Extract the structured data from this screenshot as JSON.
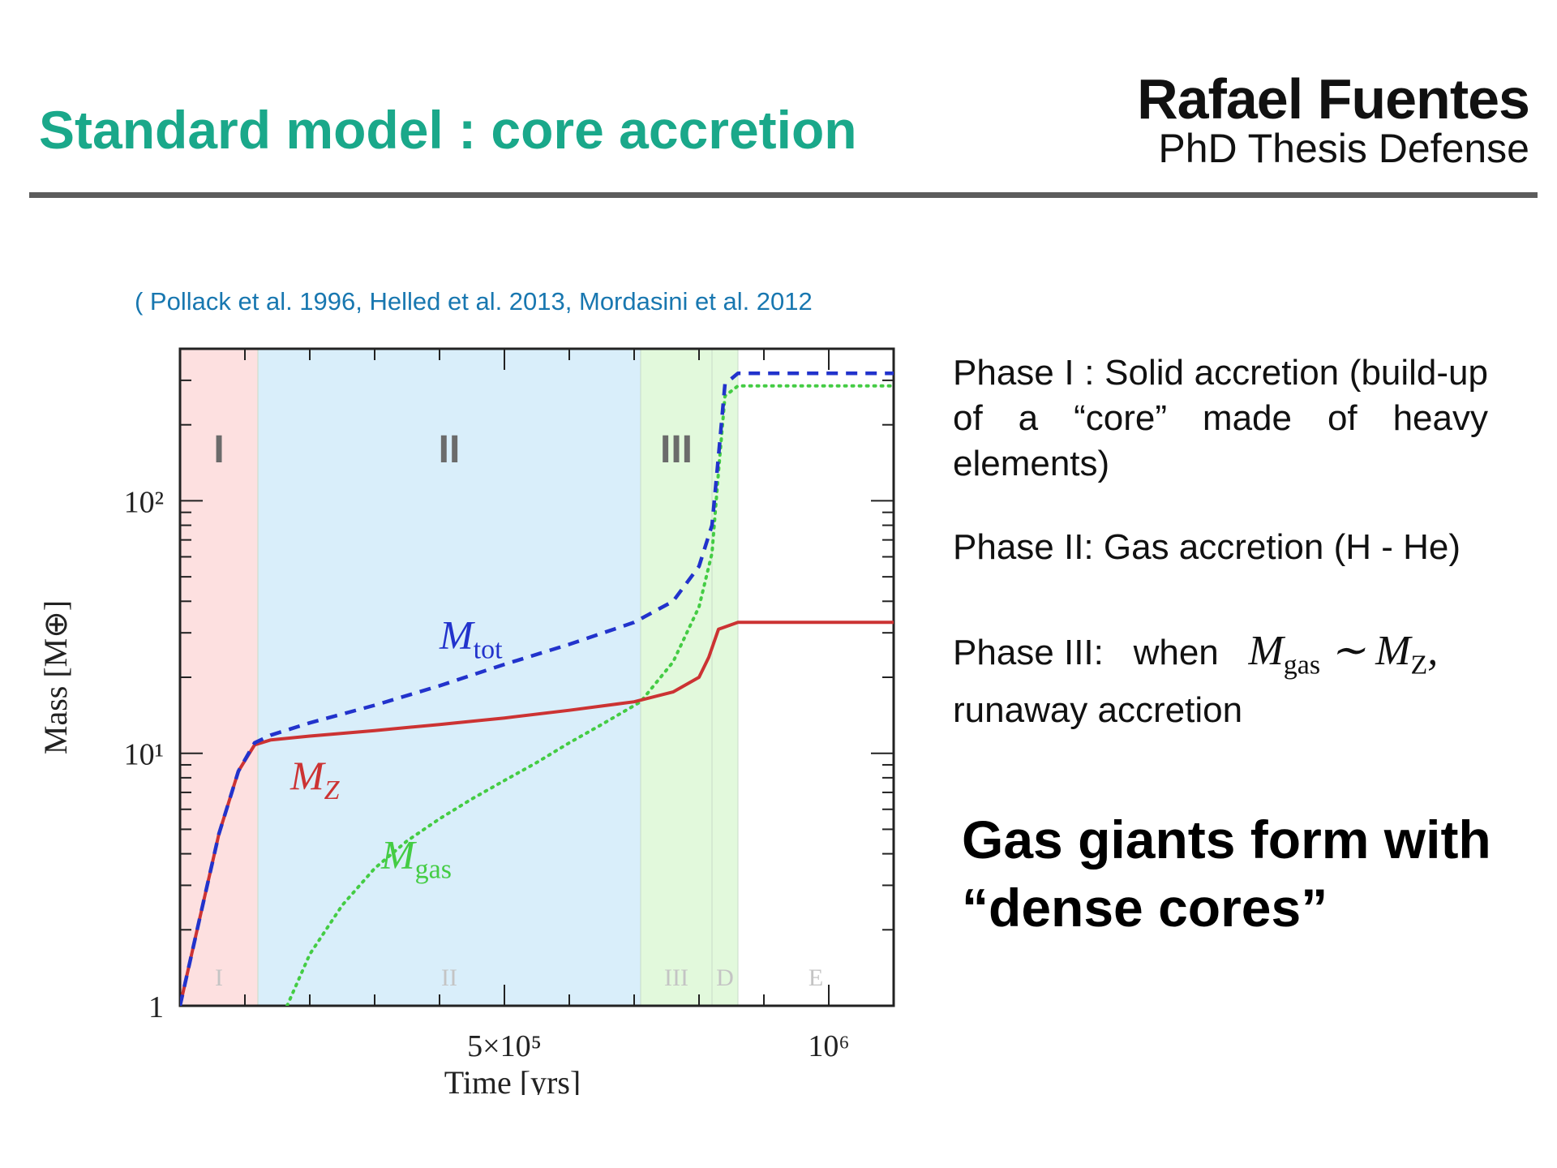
{
  "slide": {
    "title": "Standard model : core accretion",
    "author": "Rafael Fuentes",
    "event": "PhD Thesis Defense",
    "references": "( Pollack et al. 1996, Helled et al. 2013, Mordasini et al. 2012"
  },
  "text": {
    "phase1": "Phase I : Solid accretion (build-up of a “core” made of heavy elements)",
    "phase2": "Phase II: Gas accretion (H - He)",
    "phase3_lead": "Phase III:",
    "phase3_when": "when",
    "phase3_sim": "∼",
    "phase3_end": ",",
    "phase3_tail": "runaway accretion",
    "math_M": "M",
    "math_gas": "gas",
    "math_Z": "Z",
    "conclusion_line1": "Gas giants form with",
    "conclusion_line2": "“dense cores”"
  },
  "chart_data": {
    "type": "line",
    "xlabel": "Time [yrs]",
    "ylabel": "Mass [M⊕]",
    "x_scale": "linear",
    "y_scale": "log",
    "xlim": [
      0,
      1100000
    ],
    "ylim": [
      1,
      400
    ],
    "x_ticks": [
      {
        "value": 500000,
        "label": "5×10⁵"
      },
      {
        "value": 1000000,
        "label": "10⁶"
      }
    ],
    "y_ticks": [
      {
        "value": 1,
        "label": "1"
      },
      {
        "value": 10,
        "label": "10¹"
      },
      {
        "value": 100,
        "label": "10²"
      }
    ],
    "phases": [
      {
        "label": "I",
        "small_label": "I",
        "x_start": 0,
        "x_end": 120000,
        "color": "#fde0e0"
      },
      {
        "label": "II",
        "small_label": "II",
        "x_start": 120000,
        "x_end": 710000,
        "color": "#d9eefa"
      },
      {
        "label": "III",
        "small_label": "III",
        "x_start": 710000,
        "x_end": 820000,
        "color": "#e2f9dc"
      },
      {
        "label": "",
        "small_label": "D",
        "x_start": 820000,
        "x_end": 860000,
        "color": "#e2f9dc"
      },
      {
        "label": "",
        "small_label": "E",
        "x_start": 860000,
        "x_end": 1100000,
        "color": "#ffffff"
      }
    ],
    "series": [
      {
        "name": "M_tot",
        "label_main": "M",
        "label_sub": "tot",
        "color": "#2233cc",
        "style": "dashed",
        "points": [
          [
            0,
            1
          ],
          [
            30000,
            2.2
          ],
          [
            60000,
            4.8
          ],
          [
            90000,
            8.5
          ],
          [
            115000,
            11
          ],
          [
            140000,
            11.8
          ],
          [
            200000,
            13.2
          ],
          [
            300000,
            15.5
          ],
          [
            400000,
            18.5
          ],
          [
            500000,
            22.5
          ],
          [
            600000,
            27
          ],
          [
            700000,
            33
          ],
          [
            760000,
            40
          ],
          [
            800000,
            55
          ],
          [
            820000,
            80
          ],
          [
            830000,
            150
          ],
          [
            840000,
            290
          ],
          [
            860000,
            320
          ],
          [
            1000000,
            320
          ],
          [
            1100000,
            320
          ]
        ]
      },
      {
        "name": "M_Z",
        "label_main": "M",
        "label_sub": "Z",
        "color": "#cc3333",
        "style": "solid",
        "points": [
          [
            0,
            1
          ],
          [
            30000,
            2.2
          ],
          [
            60000,
            4.8
          ],
          [
            90000,
            8.5
          ],
          [
            115000,
            10.8
          ],
          [
            140000,
            11.3
          ],
          [
            200000,
            11.7
          ],
          [
            300000,
            12.3
          ],
          [
            400000,
            13
          ],
          [
            500000,
            13.8
          ],
          [
            600000,
            14.8
          ],
          [
            700000,
            16
          ],
          [
            760000,
            17.5
          ],
          [
            800000,
            20
          ],
          [
            815000,
            24
          ],
          [
            830000,
            31
          ],
          [
            860000,
            33
          ],
          [
            1000000,
            33
          ],
          [
            1100000,
            33
          ]
        ]
      },
      {
        "name": "M_gas",
        "label_main": "M",
        "label_sub": "gas",
        "color": "#44cc44",
        "style": "dotted",
        "points": [
          [
            165000,
            1
          ],
          [
            200000,
            1.6
          ],
          [
            250000,
            2.5
          ],
          [
            300000,
            3.5
          ],
          [
            350000,
            4.5
          ],
          [
            400000,
            5.5
          ],
          [
            450000,
            6.6
          ],
          [
            500000,
            7.8
          ],
          [
            550000,
            9.2
          ],
          [
            600000,
            11
          ],
          [
            650000,
            13
          ],
          [
            710000,
            16
          ],
          [
            760000,
            23
          ],
          [
            800000,
            38
          ],
          [
            820000,
            62
          ],
          [
            830000,
            130
          ],
          [
            840000,
            260
          ],
          [
            860000,
            285
          ],
          [
            1000000,
            285
          ],
          [
            1100000,
            285
          ]
        ]
      }
    ]
  }
}
